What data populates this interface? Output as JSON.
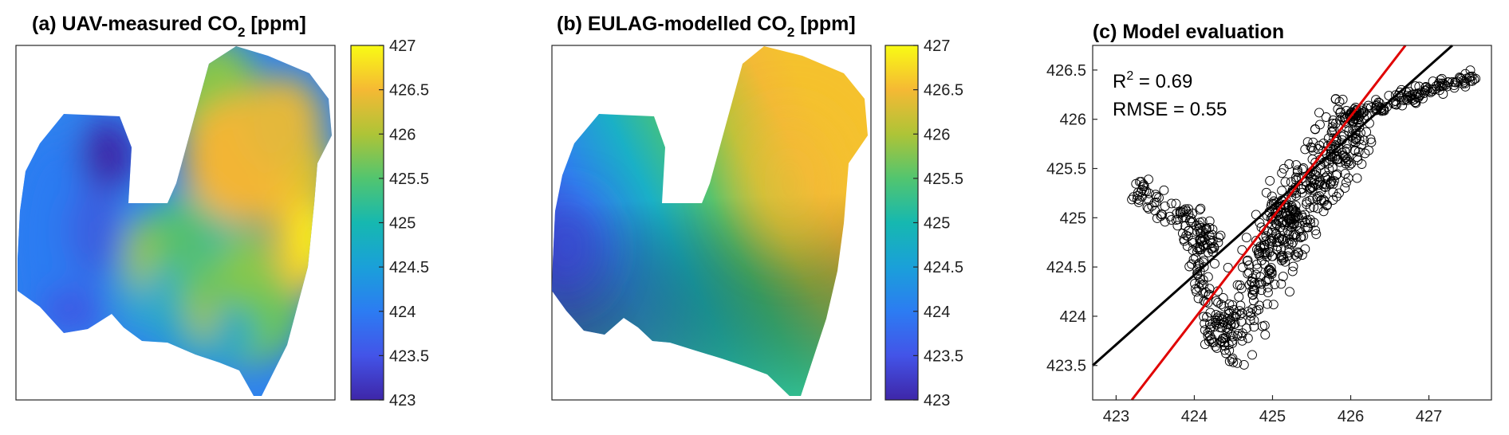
{
  "chart_data": [
    {
      "type": "heatmap",
      "title": "(a) UAV-measured CO",
      "title_sub": "2",
      "title_suffix": " [ppm]",
      "colorbar": {
        "range": [
          423,
          427
        ],
        "ticks": [
          "427",
          "426.5",
          "426",
          "425.5",
          "425",
          "424.5",
          "424",
          "423.5",
          "423"
        ]
      },
      "field_summary": {
        "low_spot": 423.2,
        "east_high": 426.9,
        "south_mid": 425.2,
        "west_band": 424.2
      }
    },
    {
      "type": "heatmap",
      "title": "(b) EULAG-modelled CO",
      "title_sub": "2",
      "title_suffix": " [ppm]",
      "colorbar": {
        "range": [
          423,
          427
        ],
        "ticks": [
          "427",
          "426.5",
          "426",
          "425.5",
          "425",
          "424.5",
          "424",
          "423.5",
          "423"
        ]
      },
      "field_summary": {
        "west_low": 423.8,
        "east_high": 426.4
      }
    },
    {
      "type": "scatter",
      "title": "(c) Model evaluation",
      "xlim": [
        422.7,
        427.8
      ],
      "ylim": [
        423.15,
        426.75
      ],
      "x_ticks": [
        "423",
        "424",
        "425",
        "426",
        "427"
      ],
      "y_ticks": [
        "426.5",
        "426",
        "425.5",
        "425",
        "424.5",
        "424",
        "423.5"
      ],
      "annotations": {
        "r2_label": "R",
        "r2_sup": "2",
        "r2_value": " = 0.69",
        "rmse": "RMSE = 0.55"
      },
      "lines": [
        {
          "kind": "one-to-one",
          "color": "#000000",
          "points": [
            [
              422.7,
              423.5
            ],
            [
              427.3,
              426.75
            ]
          ]
        },
        {
          "kind": "regression",
          "color": "#e00000",
          "points": [
            [
              423.2,
              423.15
            ],
            [
              426.7,
              426.75
            ]
          ]
        }
      ],
      "point_clusters": [
        {
          "x0": 424.3,
          "y0": 423.6,
          "x1": 425.3,
          "y1": 425.1,
          "width": 0.55,
          "n": 220
        },
        {
          "x0": 425.0,
          "y0": 424.9,
          "x1": 426.1,
          "y1": 426.1,
          "width": 0.55,
          "n": 200
        },
        {
          "x0": 425.9,
          "y0": 426.0,
          "x1": 427.6,
          "y1": 426.45,
          "width": 0.18,
          "n": 140
        },
        {
          "x0": 423.2,
          "y0": 425.3,
          "x1": 424.3,
          "y1": 424.7,
          "width": 0.35,
          "n": 90
        },
        {
          "x0": 423.9,
          "y0": 425.1,
          "x1": 424.3,
          "y1": 423.7,
          "width": 0.3,
          "n": 90
        },
        {
          "x0": 425.0,
          "y0": 424.6,
          "x1": 426.2,
          "y1": 425.9,
          "width": 0.45,
          "n": 110
        }
      ]
    }
  ]
}
